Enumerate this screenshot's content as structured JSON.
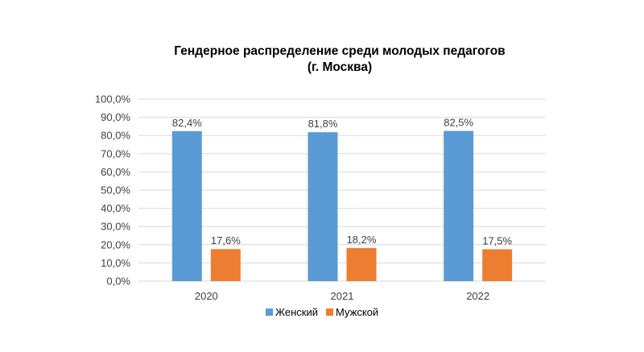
{
  "chart_data": {
    "type": "bar",
    "title": "Гендерное распределение среди молодых педагогов",
    "subtitle": "(г. Москва)",
    "categories": [
      "2020",
      "2021",
      "2022"
    ],
    "series": [
      {
        "name": "Женский",
        "values": [
          82.4,
          81.8,
          82.5
        ],
        "labels": [
          "82,4%",
          "81,8%",
          "82,5%"
        ],
        "color": "#5b9bd5"
      },
      {
        "name": "Мужской",
        "values": [
          17.6,
          18.2,
          17.5
        ],
        "labels": [
          "17,6%",
          "18,2%",
          "17,5%"
        ],
        "color": "#ed7d31"
      }
    ],
    "ylim": [
      0,
      100
    ],
    "yticks": [
      "0,0%",
      "10,0%",
      "20,0%",
      "30,0%",
      "40,0%",
      "50,0%",
      "60,0%",
      "70,0%",
      "80,0%",
      "90,0%",
      "100,0%"
    ],
    "grid": true,
    "legend_position": "bottom",
    "grid_color": "#d9d9d9"
  }
}
